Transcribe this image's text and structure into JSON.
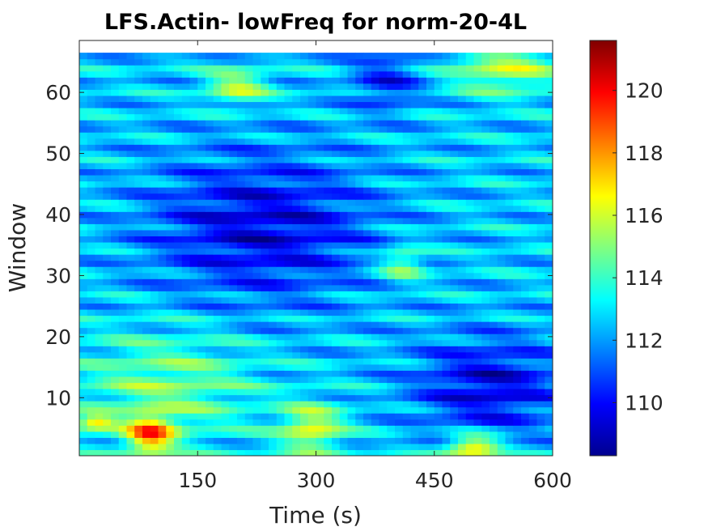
{
  "chart_data": {
    "type": "heatmap",
    "title": "LFS.Actin- lowFreq for norm-20-4L",
    "xlabel": "Time (s)",
    "ylabel": "Window",
    "xlim": [
      0,
      600
    ],
    "ylim": [
      0.5,
      68.5
    ],
    "x_ticks": [
      150,
      300,
      450,
      600
    ],
    "y_ticks": [
      10,
      20,
      30,
      40,
      50,
      60
    ],
    "colormap": "jet",
    "colorbar": {
      "range": [
        108.3,
        121.6
      ],
      "ticks": [
        110,
        112,
        114,
        116,
        118,
        120
      ]
    },
    "data_regions_approx": [
      {
        "region": "lower-left (t 0-250 s, windows 1-22)",
        "value": 114
      },
      {
        "region": "bottom-left hot spot (t 70-110 s, windows 1-7)",
        "value": 119
      },
      {
        "region": "center band (t 100-400 s, windows 24-50)",
        "value": 110
      },
      {
        "region": "lower-right (t 400-600 s, windows 5-20)",
        "value": 110
      },
      {
        "region": "top rows (windows 56-66)",
        "value": 113
      }
    ]
  }
}
